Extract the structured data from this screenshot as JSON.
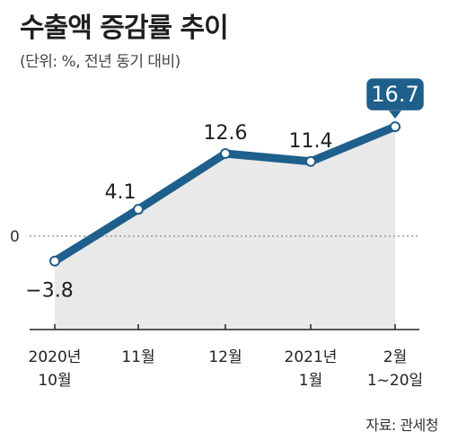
{
  "title": "수출액 증감률 추이",
  "subtitle": "(단위: %, 전년 동기 대비)",
  "source": "자료: 관세청",
  "colors": {
    "line": "#1f5f8b",
    "fill": "#e9e9e9",
    "highlight": "#1f5f8b",
    "zero": "#888888"
  },
  "chart_data": {
    "type": "line",
    "categories": [
      [
        "2020년",
        "10월"
      ],
      [
        "11월"
      ],
      [
        "12월"
      ],
      [
        "2021년",
        "1월"
      ],
      [
        "2월",
        "1~20일"
      ]
    ],
    "values": [
      -3.8,
      4.1,
      12.6,
      11.4,
      16.7
    ],
    "value_labels": [
      "−3.8",
      "4.1",
      "12.6",
      "11.4",
      "16.7"
    ],
    "highlight_index": 4,
    "zero_label": "0",
    "ylim": [
      -6,
      19
    ],
    "grid": false
  }
}
